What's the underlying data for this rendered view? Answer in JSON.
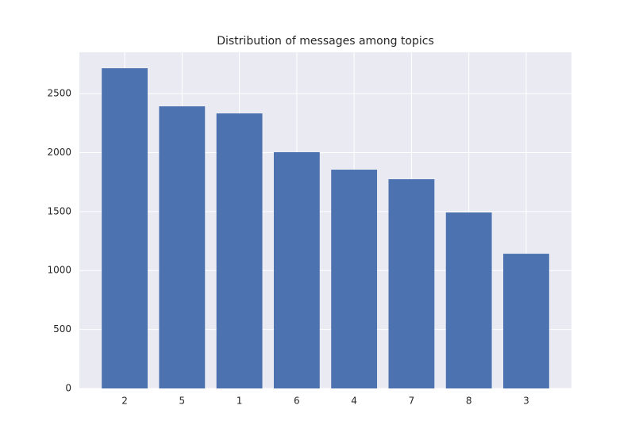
{
  "chart_data": {
    "type": "bar",
    "title": "Distribution of messages among topics",
    "categories": [
      "2",
      "5",
      "1",
      "6",
      "4",
      "7",
      "8",
      "3"
    ],
    "values": [
      2715,
      2392,
      2332,
      2003,
      1855,
      1774,
      1492,
      1142
    ],
    "color": "#4c72b0",
    "ylim": [
      0,
      2850
    ],
    "yticks": [
      0,
      500,
      1000,
      1500,
      2000,
      2500
    ],
    "grid": true
  }
}
